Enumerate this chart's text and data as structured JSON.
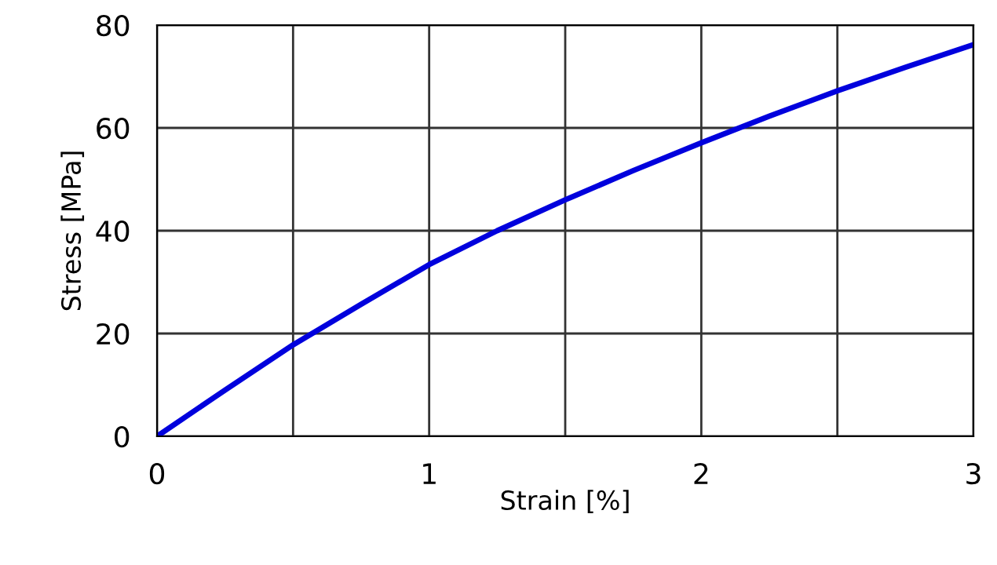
{
  "chart_data": {
    "type": "line",
    "xlabel": "Strain [%]",
    "ylabel": "Stress [MPa]",
    "x": [
      0,
      0.25,
      0.5,
      0.75,
      1.0,
      1.25,
      1.5,
      1.75,
      2.0,
      2.25,
      2.5,
      2.75,
      3.0
    ],
    "series": [
      {
        "color": "#0000dd",
        "values": [
          0,
          9,
          17.8,
          25.7,
          33.4,
          40,
          46,
          51.7,
          57.1,
          62.3,
          67.2,
          71.8,
          76.2
        ]
      }
    ],
    "xlim": [
      0,
      3
    ],
    "ylim": [
      0,
      80
    ],
    "xticks": [
      0,
      {
        "value": 0.5,
        "label": null
      },
      1,
      {
        "value": 1.5,
        "label": null
      },
      2,
      {
        "value": 2.5,
        "label": null
      },
      3
    ],
    "yticks": [
      0,
      20,
      40,
      60,
      80
    ],
    "grid": true,
    "marker": "none",
    "line_style": "solid"
  }
}
